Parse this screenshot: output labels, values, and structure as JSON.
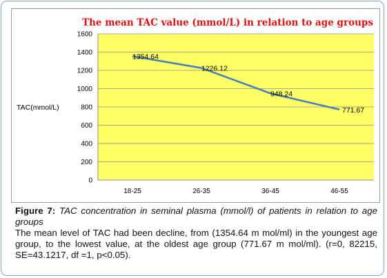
{
  "chart_data": {
    "type": "line",
    "title": "The mean TAC value (mmol/L) in relation to age groups",
    "ylabel": "TAC(mmol/L)",
    "xlabel": "",
    "categories": [
      "18-25",
      "26-35",
      "36-45",
      "46-55"
    ],
    "values": [
      1354.64,
      1226.12,
      948.24,
      771.67
    ],
    "data_labels": [
      "1354.64",
      "1226.12",
      "948.24",
      "771.67"
    ],
    "y_ticks": [
      "0",
      "200",
      "400",
      "600",
      "800",
      "1000",
      "1200",
      "1400",
      "1600"
    ],
    "ylim": [
      0,
      1600
    ],
    "grid": true,
    "plot_background": "#ffff66",
    "line_color": "#4a7ebb"
  },
  "caption": {
    "figure_label": "Figure 7:",
    "figure_title": "TAC concentration in seminal plasma (mmol/l) of patients in relation to age groups",
    "body": "The mean level of TAC had been decline, from (1354.64 m mol/ml) in the youngest age group, to the lowest value, at the oldest age group (771.67 m mol/ml). (r=0, 82215, SE=43.1217, df =1, p<0.05)."
  }
}
